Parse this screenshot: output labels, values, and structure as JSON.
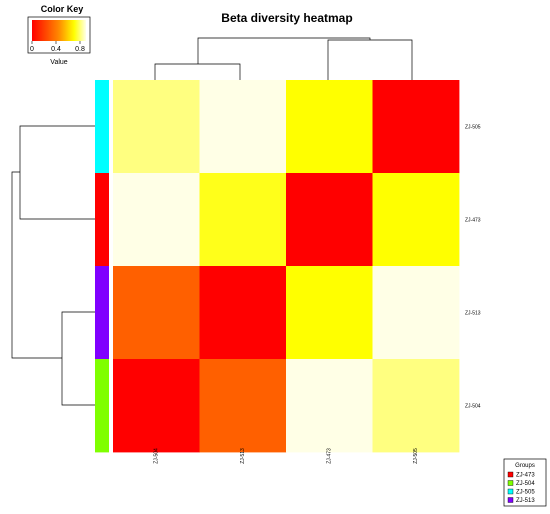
{
  "chart_data": {
    "type": "heatmap",
    "title": "Beta diversity heatmap",
    "color_key": {
      "title": "Color Key",
      "label": "Value",
      "ticks": [
        "0",
        "0.4",
        "0.8"
      ],
      "range": [
        0,
        0.9
      ],
      "colors": [
        "#ff0000",
        "#ffff00",
        "#ffffe6"
      ]
    },
    "columns": [
      "ZJ-504",
      "ZJ-513",
      "ZJ-473",
      "ZJ-505"
    ],
    "rows": [
      "ZJ-505",
      "ZJ-473",
      "ZJ-513",
      "ZJ-504"
    ],
    "values": [
      [
        0.7,
        0.85,
        0.45,
        0.0
      ],
      [
        0.85,
        0.5,
        0.0,
        0.45
      ],
      [
        0.15,
        0.0,
        0.45,
        0.85
      ],
      [
        0.0,
        0.15,
        0.85,
        0.7
      ]
    ],
    "row_groups": [
      "ZJ-505",
      "ZJ-473",
      "ZJ-513",
      "ZJ-504"
    ],
    "legend": {
      "title": "Groups",
      "position": "bottom-right",
      "items": [
        {
          "label": "ZJ-473",
          "color": "#ff0000"
        },
        {
          "label": "ZJ-504",
          "color": "#7fff00"
        },
        {
          "label": "ZJ-505",
          "color": "#00ffff"
        },
        {
          "label": "ZJ-513",
          "color": "#8000ff"
        }
      ]
    }
  }
}
